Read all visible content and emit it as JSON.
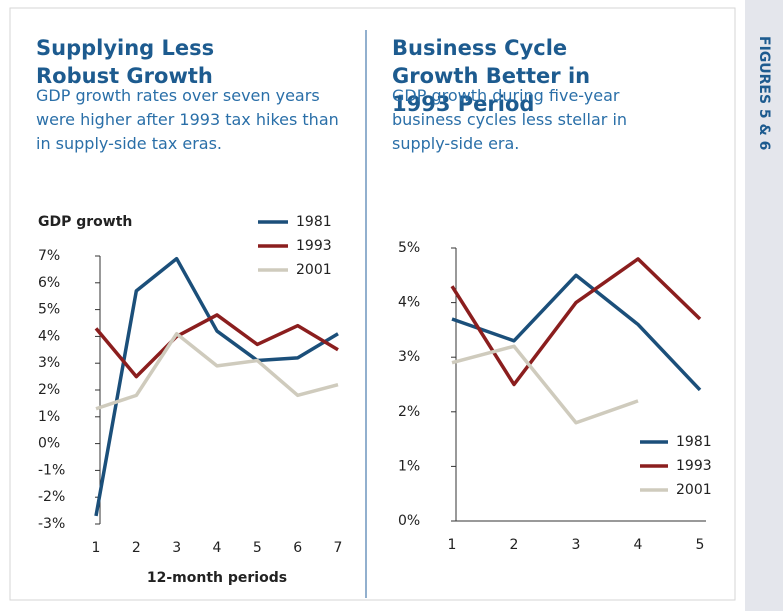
{
  "sidebar_label": "FIGURES 5 & 6",
  "chart_data": [
    {
      "type": "line",
      "title": "Supplying Less Robust Growth",
      "subtitle": "GDP growth rates over seven years were higher after 1993 tax hikes than in supply-side tax eras.",
      "y_label": "GDP growth",
      "x_label": "12-month periods",
      "x": [
        1,
        2,
        3,
        4,
        5,
        6,
        7
      ],
      "xlim": [
        1,
        7
      ],
      "xticks": [
        1,
        2,
        3,
        4,
        5,
        6,
        7
      ],
      "ylim": [
        -3,
        7
      ],
      "yticks": [
        {
          "value": -3,
          "label": "-3%"
        },
        {
          "value": -2,
          "label": "-2%"
        },
        {
          "value": -1,
          "label": "-1%"
        },
        {
          "value": 0,
          "label": "0%"
        },
        {
          "value": 1,
          "label": "1%"
        },
        {
          "value": 2,
          "label": "2%"
        },
        {
          "value": 3,
          "label": "3%"
        },
        {
          "value": 4,
          "label": "4%"
        },
        {
          "value": 5,
          "label": "5%"
        },
        {
          "value": 6,
          "label": "6%"
        },
        {
          "value": 7,
          "label": "7%"
        }
      ],
      "legend": "upper right",
      "series": [
        {
          "name": "1981",
          "color": "#1b4f7a",
          "values": [
            -2.7,
            5.7,
            6.9,
            4.2,
            3.1,
            3.2,
            4.1
          ]
        },
        {
          "name": "1993",
          "color": "#8b1e1e",
          "values": [
            4.3,
            2.5,
            4.0,
            4.8,
            3.7,
            4.4,
            3.5
          ]
        },
        {
          "name": "2001",
          "color": "#cfcbbd",
          "values": [
            1.3,
            1.8,
            4.1,
            2.9,
            3.1,
            1.8,
            2.2
          ]
        }
      ]
    },
    {
      "type": "line",
      "title": "Business Cycle Growth Better in 1993 Period",
      "subtitle": "GDP growth during five-year business cycles less stellar in supply-side era.",
      "x": [
        1,
        2,
        3,
        4,
        5
      ],
      "xlim": [
        1,
        5
      ],
      "xticks": [
        1,
        2,
        3,
        4,
        5
      ],
      "ylim": [
        0,
        5
      ],
      "yticks": [
        {
          "value": 0,
          "label": "0%"
        },
        {
          "value": 1,
          "label": "1%"
        },
        {
          "value": 2,
          "label": "2%"
        },
        {
          "value": 3,
          "label": "3%"
        },
        {
          "value": 4,
          "label": "4%"
        },
        {
          "value": 5,
          "label": "5%"
        }
      ],
      "legend": "lower right",
      "series": [
        {
          "name": "1981",
          "color": "#1b4f7a",
          "values": [
            3.7,
            3.3,
            4.5,
            3.6,
            2.4
          ]
        },
        {
          "name": "1993",
          "color": "#8b1e1e",
          "values": [
            4.3,
            2.5,
            4.0,
            4.8,
            3.7
          ]
        },
        {
          "name": "2001",
          "color": "#cfcbbd",
          "values": [
            2.9,
            3.2,
            1.8,
            2.2,
            null
          ]
        }
      ]
    }
  ]
}
